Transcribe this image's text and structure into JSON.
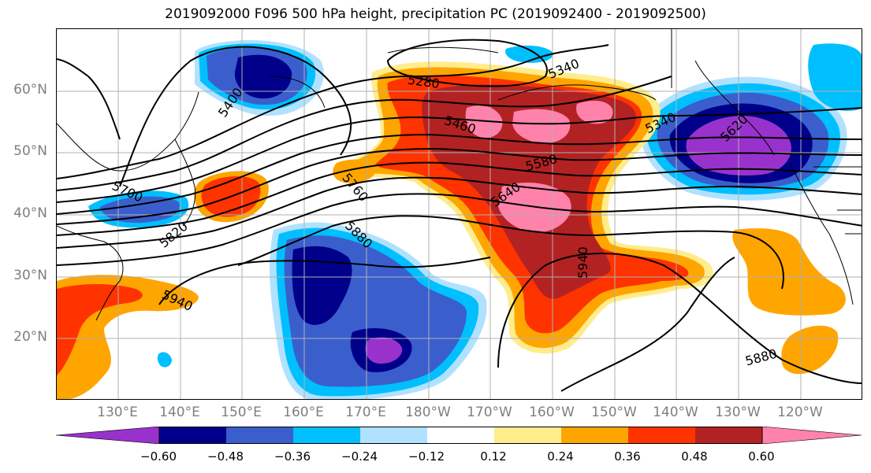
{
  "title": "2019092000 F096 500 hPa height, precipitation PC (2019092400 - 2019092500)",
  "lat_labels": [
    "60°N",
    "50°N",
    "40°N",
    "30°N",
    "20°N"
  ],
  "lon_labels": [
    "130°E",
    "140°E",
    "150°E",
    "160°E",
    "170°E",
    "180°W",
    "170°W",
    "160°W",
    "150°W",
    "140°W",
    "130°W",
    "120°W"
  ],
  "contour_labels": [
    "5400",
    "5280",
    "5340",
    "5460",
    "5340",
    "5620",
    "5580",
    "5640",
    "5700",
    "5760",
    "5820",
    "5880",
    "5940",
    "5940",
    "5880"
  ],
  "colorbar": {
    "labels": [
      "−0.60",
      "−0.48",
      "−0.36",
      "−0.24",
      "−0.12",
      "0.12",
      "0.24",
      "0.36",
      "0.48",
      "0.60"
    ],
    "colors": [
      "#9932cc",
      "#00008b",
      "#3a5fcd",
      "#00bfff",
      "#b0e2ff",
      "#ffffff",
      "#ffec8b",
      "#ffa500",
      "#ff3300",
      "#b22222",
      "#ff82ab"
    ]
  },
  "colors": {
    "purple": "#9932cc",
    "navy": "#00008b",
    "blue": "#3a5fcd",
    "sky": "#00bfff",
    "lightblue": "#b0e2ff",
    "yellow": "#ffec8b",
    "orange": "#ffa500",
    "red": "#ff3300",
    "darkred": "#b22222",
    "pink": "#ff82ab",
    "gridline": "#b0b0b0",
    "ticklabel": "#7f7f7f"
  }
}
